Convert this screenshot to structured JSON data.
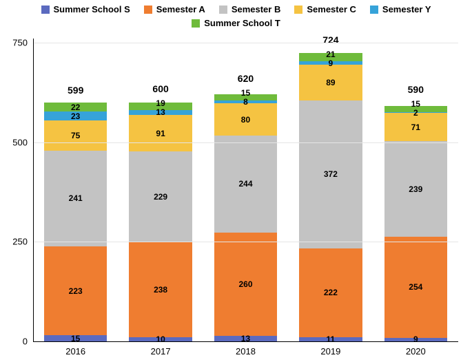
{
  "chart": {
    "type": "stacked-bar",
    "background_color": "#ffffff",
    "grid_color": "#e5e5e5",
    "axis_color": "#000000",
    "text_color": "#000000",
    "bar_width_ratio": 0.74,
    "title_fontsize": 13,
    "label_fontsize": 12,
    "total_fontsize": 14,
    "yaxis": {
      "min": 0,
      "max": 760,
      "ticks": [
        0,
        250,
        500,
        750
      ]
    },
    "series": [
      {
        "key": "summer_s",
        "label": "Summer School S",
        "color": "#5b6abf"
      },
      {
        "key": "sem_a",
        "label": "Semester A",
        "color": "#ef7d30"
      },
      {
        "key": "sem_b",
        "label": "Semester B",
        "color": "#c3c3c3"
      },
      {
        "key": "sem_c",
        "label": "Semester C",
        "color": "#f5c342"
      },
      {
        "key": "sem_y",
        "label": "Semester Y",
        "color": "#36a3d9"
      },
      {
        "key": "summer_t",
        "label": "Summer School T",
        "color": "#6fbb3b"
      }
    ],
    "categories": [
      "2016",
      "2017",
      "2018",
      "2019",
      "2020"
    ],
    "data": {
      "summer_s": [
        15,
        10,
        13,
        11,
        9
      ],
      "sem_a": [
        223,
        238,
        260,
        222,
        254
      ],
      "sem_b": [
        241,
        229,
        244,
        372,
        239
      ],
      "sem_c": [
        75,
        91,
        80,
        89,
        71
      ],
      "sem_y": [
        23,
        13,
        8,
        9,
        2
      ],
      "summer_t": [
        22,
        19,
        15,
        21,
        15
      ]
    },
    "totals": [
      599,
      600,
      620,
      724,
      590
    ]
  }
}
